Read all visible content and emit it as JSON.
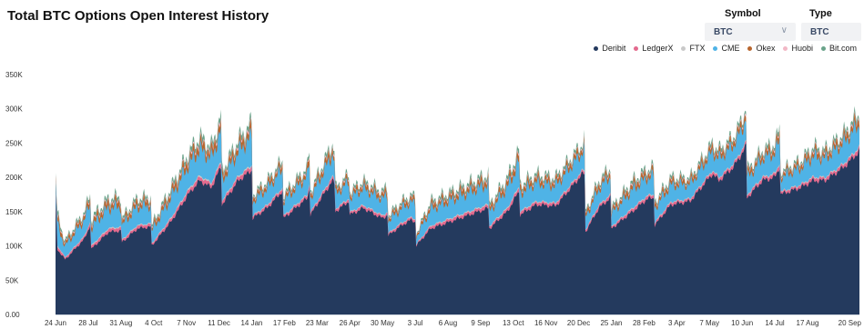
{
  "header": {
    "title": "Total BTC Options Open Interest History",
    "symbol_label": "Symbol",
    "symbol_value": "BTC",
    "type_label": "Type",
    "type_value": "BTC"
  },
  "colors": {
    "Deribit": "#243a5e",
    "LedgerX": "#e36a8e",
    "FTX": "#c9c9c9",
    "CME": "#4fb3e6",
    "Okex": "#b8662e",
    "Huobi": "#f2b8c6",
    "Bit.com": "#6aa38a"
  },
  "chart_data": {
    "type": "area",
    "stacked": true,
    "title": "Total BTC Options Open Interest History",
    "xlabel": "",
    "ylabel": "",
    "ylim": [
      0,
      350000
    ],
    "y_ticks": [
      "0.00",
      "50K",
      "100K",
      "150K",
      "200K",
      "250K",
      "300K",
      "350K"
    ],
    "y_tick_values": [
      0,
      50000,
      100000,
      150000,
      200000,
      250000,
      300000,
      350000
    ],
    "x_ticks": [
      "24 Jun",
      "28 Jul",
      "31 Aug",
      "4 Oct",
      "7 Nov",
      "11 Dec",
      "14 Jan",
      "17 Feb",
      "23 Mar",
      "26 Apr",
      "30 May",
      "3 Jul",
      "6 Aug",
      "9 Sep",
      "13 Oct",
      "16 Nov",
      "20 Dec",
      "25 Jan",
      "28 Feb",
      "3 Apr",
      "7 May",
      "10 Jun",
      "14 Jul",
      "17 Aug",
      "20 Sep"
    ],
    "x_tick_index": [
      0,
      34,
      68,
      102,
      136,
      170,
      204,
      238,
      272,
      306,
      340,
      374,
      408,
      442,
      476,
      510,
      544,
      578,
      612,
      646,
      680,
      714,
      748,
      782,
      816
    ],
    "legend_position": "top-right",
    "grid": false,
    "series_order": [
      "Deribit",
      "LedgerX",
      "FTX",
      "CME",
      "Okex",
      "Huobi",
      "Bit.com"
    ],
    "anchors_total": [
      [
        0,
        205000
      ],
      [
        2,
        145000
      ],
      [
        10,
        108000
      ],
      [
        30,
        150000
      ],
      [
        36,
        175000
      ],
      [
        37,
        140000
      ],
      [
        55,
        170000
      ],
      [
        68,
        172000
      ],
      [
        69,
        140000
      ],
      [
        85,
        170000
      ],
      [
        99,
        172000
      ],
      [
        100,
        130000
      ],
      [
        120,
        185000
      ],
      [
        138,
        235000
      ],
      [
        150,
        260000
      ],
      [
        162,
        245000
      ],
      [
        172,
        290000
      ],
      [
        173,
        210000
      ],
      [
        190,
        255000
      ],
      [
        204,
        280000
      ],
      [
        205,
        175000
      ],
      [
        220,
        195000
      ],
      [
        236,
        225000
      ],
      [
        237,
        175000
      ],
      [
        262,
        215000
      ],
      [
        264,
        240000
      ],
      [
        265,
        180000
      ],
      [
        288,
        250000
      ],
      [
        290,
        240000
      ],
      [
        291,
        185000
      ],
      [
        305,
        205000
      ],
      [
        306,
        180000
      ],
      [
        320,
        195000
      ],
      [
        340,
        180000
      ],
      [
        345,
        185000
      ],
      [
        346,
        145000
      ],
      [
        360,
        165000
      ],
      [
        370,
        175000
      ],
      [
        374,
        170000
      ],
      [
        375,
        118000
      ],
      [
        390,
        165000
      ],
      [
        420,
        185000
      ],
      [
        450,
        205000
      ],
      [
        451,
        160000
      ],
      [
        470,
        200000
      ],
      [
        482,
        240000
      ],
      [
        483,
        190000
      ],
      [
        500,
        205000
      ],
      [
        520,
        200000
      ],
      [
        548,
        250000
      ],
      [
        550,
        255000
      ],
      [
        551,
        150000
      ],
      [
        565,
        195000
      ],
      [
        577,
        215000
      ],
      [
        578,
        155000
      ],
      [
        600,
        195000
      ],
      [
        615,
        212000
      ],
      [
        622,
        215000
      ],
      [
        623,
        165000
      ],
      [
        640,
        200000
      ],
      [
        660,
        200000
      ],
      [
        683,
        250000
      ],
      [
        690,
        240000
      ],
      [
        705,
        260000
      ],
      [
        714,
        285000
      ],
      [
        718,
        305000
      ],
      [
        719,
        210000
      ],
      [
        735,
        240000
      ],
      [
        748,
        250000
      ],
      [
        753,
        270000
      ],
      [
        754,
        210000
      ],
      [
        775,
        225000
      ],
      [
        788,
        245000
      ],
      [
        800,
        240000
      ],
      [
        820,
        265000
      ],
      [
        836,
        295000
      ]
    ],
    "anchors_deribit": [
      [
        0,
        170000
      ],
      [
        2,
        95000
      ],
      [
        10,
        80000
      ],
      [
        30,
        110000
      ],
      [
        36,
        130000
      ],
      [
        37,
        95000
      ],
      [
        55,
        120000
      ],
      [
        68,
        122000
      ],
      [
        69,
        105000
      ],
      [
        85,
        125000
      ],
      [
        99,
        128000
      ],
      [
        100,
        100000
      ],
      [
        120,
        135000
      ],
      [
        138,
        175000
      ],
      [
        150,
        195000
      ],
      [
        162,
        185000
      ],
      [
        172,
        215000
      ],
      [
        173,
        160000
      ],
      [
        190,
        195000
      ],
      [
        204,
        210000
      ],
      [
        205,
        140000
      ],
      [
        220,
        155000
      ],
      [
        236,
        180000
      ],
      [
        237,
        140000
      ],
      [
        262,
        170000
      ],
      [
        264,
        185000
      ],
      [
        265,
        145000
      ],
      [
        288,
        195000
      ],
      [
        290,
        190000
      ],
      [
        291,
        150000
      ],
      [
        305,
        165000
      ],
      [
        306,
        145000
      ],
      [
        320,
        155000
      ],
      [
        340,
        140000
      ],
      [
        345,
        145000
      ],
      [
        346,
        115000
      ],
      [
        360,
        130000
      ],
      [
        370,
        138000
      ],
      [
        374,
        135000
      ],
      [
        375,
        100000
      ],
      [
        390,
        125000
      ],
      [
        420,
        140000
      ],
      [
        450,
        155000
      ],
      [
        451,
        125000
      ],
      [
        470,
        150000
      ],
      [
        482,
        180000
      ],
      [
        483,
        145000
      ],
      [
        500,
        160000
      ],
      [
        520,
        158000
      ],
      [
        548,
        205000
      ],
      [
        550,
        205000
      ],
      [
        551,
        120000
      ],
      [
        565,
        155000
      ],
      [
        577,
        170000
      ],
      [
        578,
        125000
      ],
      [
        600,
        150000
      ],
      [
        615,
        168000
      ],
      [
        622,
        170000
      ],
      [
        623,
        130000
      ],
      [
        640,
        160000
      ],
      [
        660,
        165000
      ],
      [
        683,
        205000
      ],
      [
        690,
        195000
      ],
      [
        705,
        215000
      ],
      [
        714,
        235000
      ],
      [
        718,
        245000
      ],
      [
        719,
        170000
      ],
      [
        735,
        195000
      ],
      [
        748,
        200000
      ],
      [
        753,
        215000
      ],
      [
        754,
        175000
      ],
      [
        775,
        185000
      ],
      [
        788,
        195000
      ],
      [
        800,
        195000
      ],
      [
        820,
        215000
      ],
      [
        836,
        238000
      ]
    ],
    "component_shares": {
      "LedgerX": 0.09,
      "FTX": 0.03,
      "CME": 0.58,
      "Okex": 0.15,
      "Huobi": 0.05,
      "Bit.com": 0.1
    }
  }
}
